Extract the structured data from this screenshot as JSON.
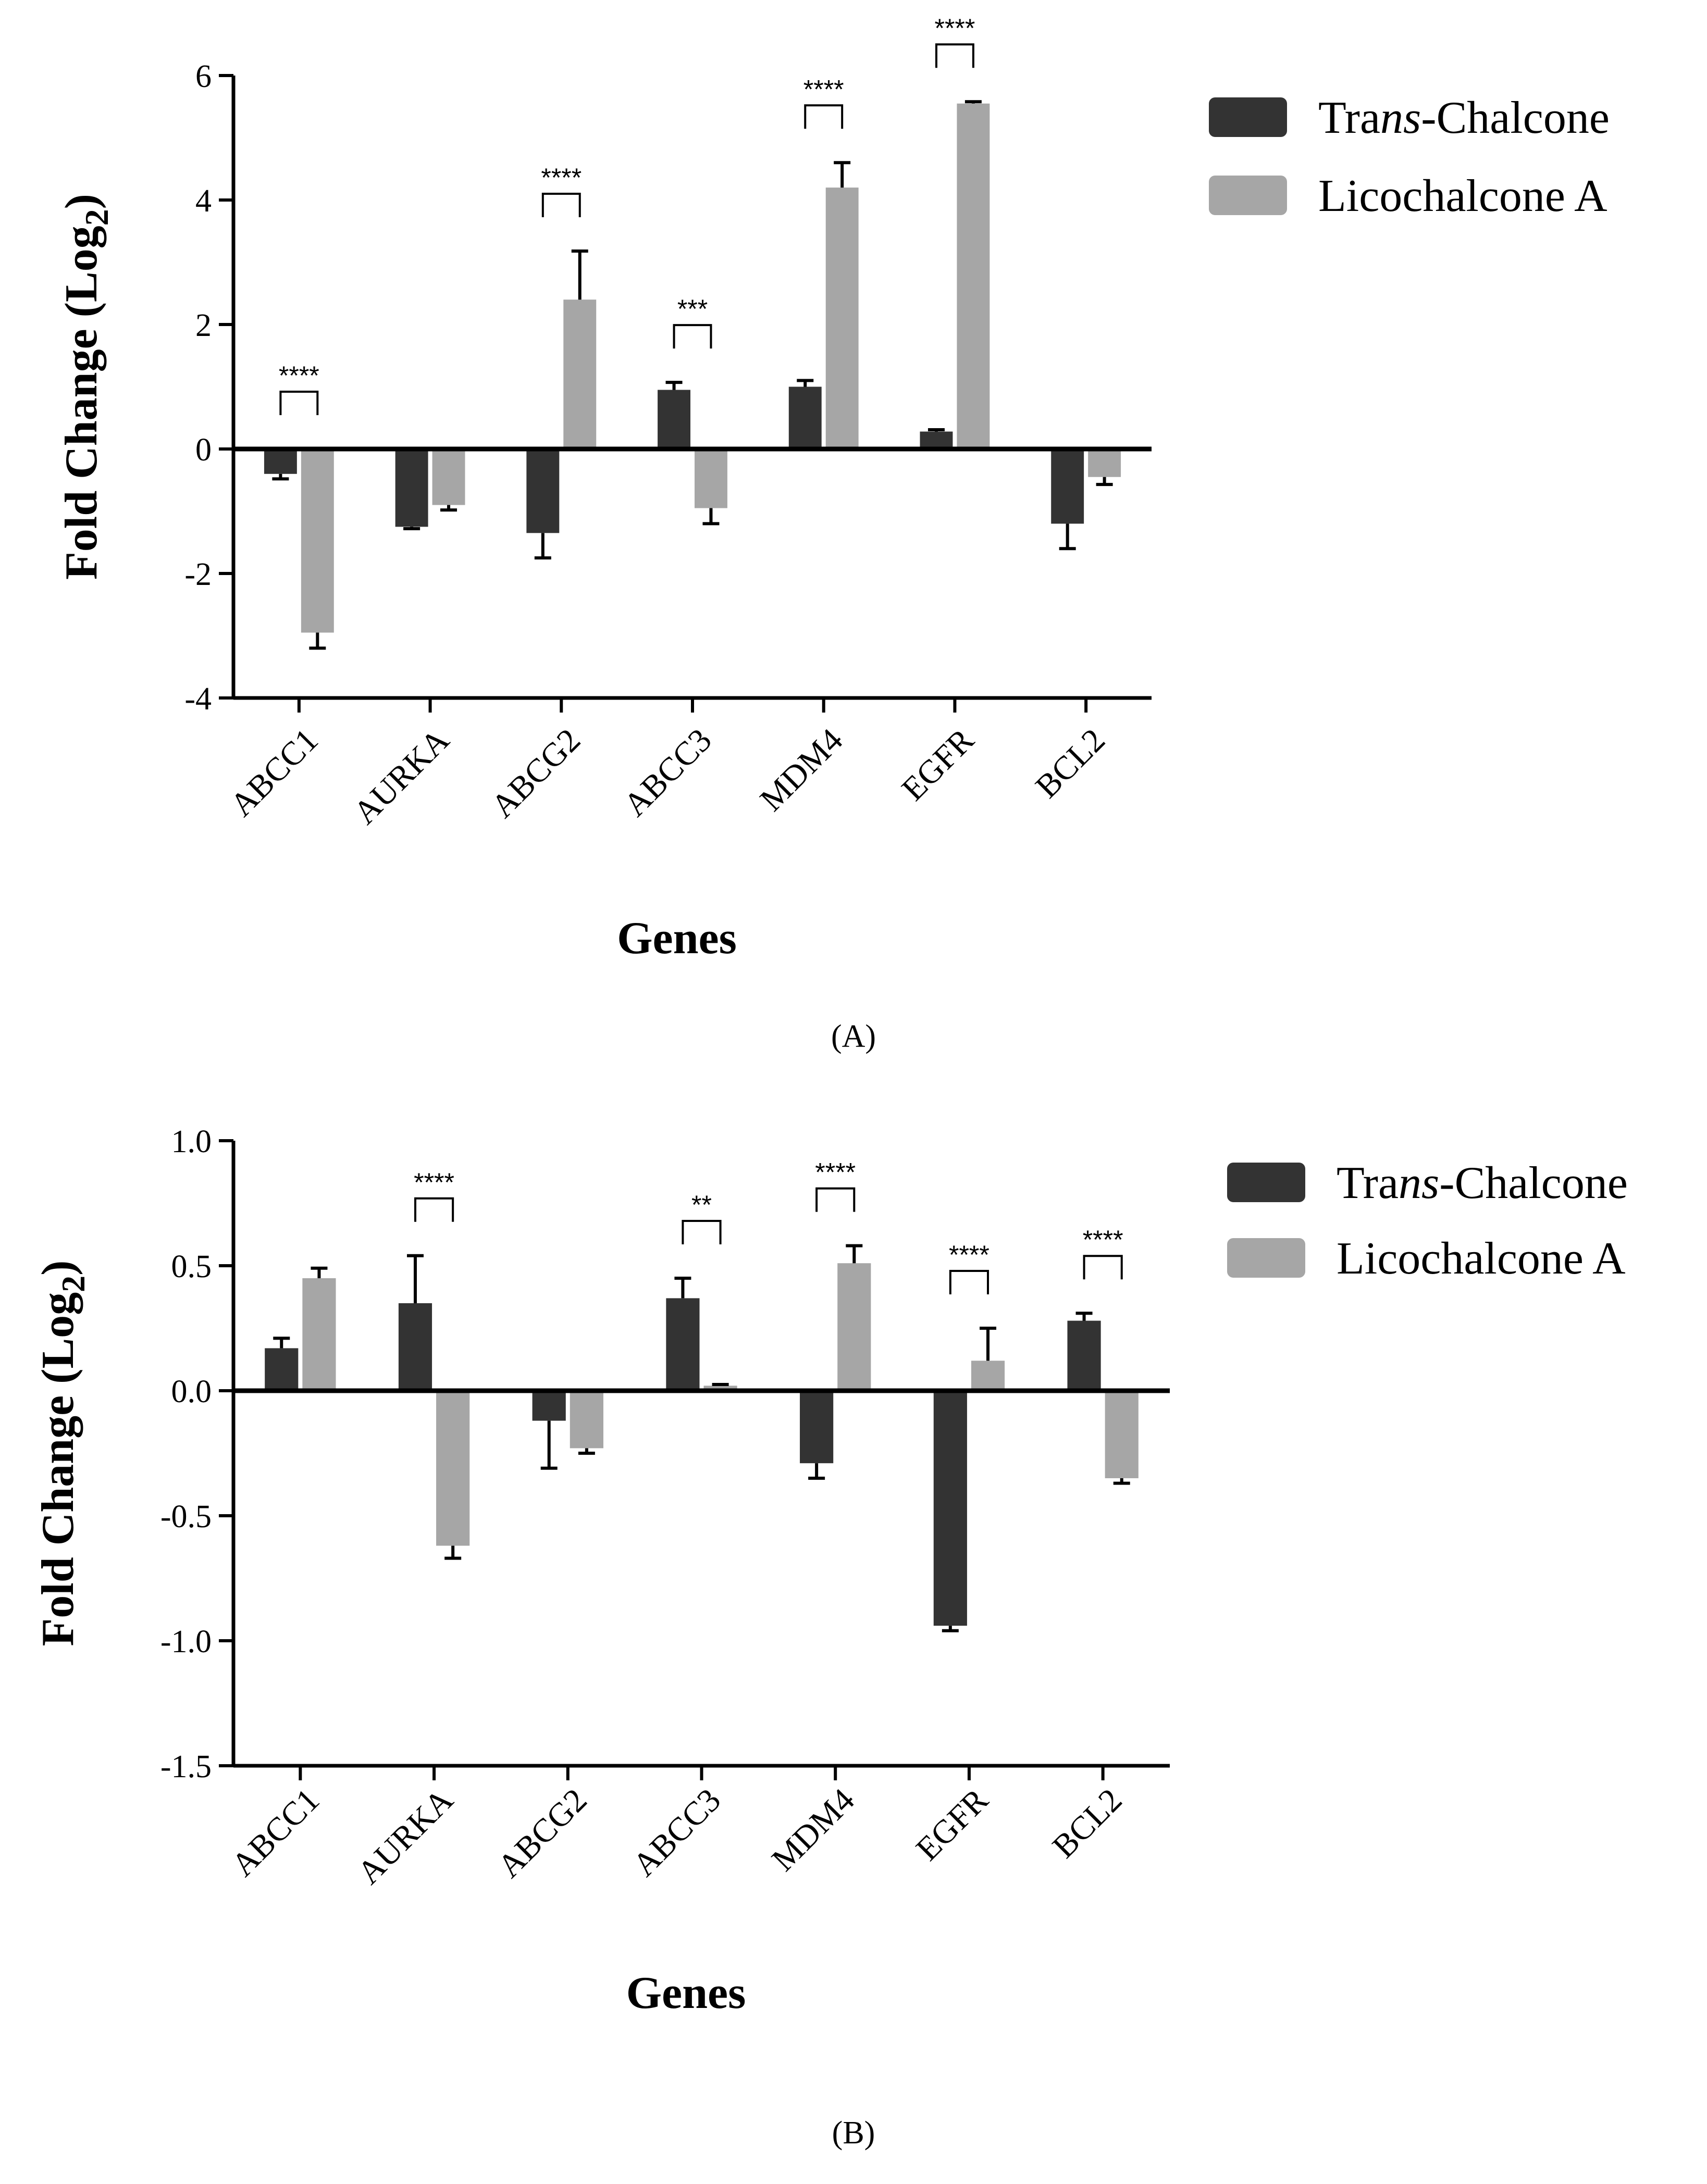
{
  "colors": {
    "trans_chalcone": "#333333",
    "licochalcone_a": "#a6a6a6",
    "axis": "#000000"
  },
  "chart_data": [
    {
      "panel": "(A)",
      "type": "bar",
      "title": "",
      "xlabel": "Genes",
      "ylabel": "Fold Change (Log",
      "ylabel_sub": "2",
      "ylabel_close": ")",
      "ylim": [
        -4,
        6
      ],
      "yticks": [
        6,
        4,
        2,
        0,
        -2,
        -4
      ],
      "ytick_labels": [
        "6",
        "4",
        "2",
        "0",
        "-2",
        "-4"
      ],
      "categories": [
        "ABCC1",
        "AURKA",
        "ABCG2",
        "ABCC3",
        "MDM4",
        "EGFR",
        "BCL2"
      ],
      "series": [
        {
          "name": "Trans-Chalcone",
          "name_prefix": "Tra",
          "name_italic": "ns",
          "name_suffix": "-Chalcone",
          "values": [
            -0.4,
            -1.25,
            -1.35,
            0.95,
            1.0,
            0.28,
            -1.2
          ],
          "errors": [
            0.08,
            0.03,
            0.4,
            0.12,
            0.1,
            0.03,
            0.4
          ]
        },
        {
          "name": "Licochalcone A",
          "name_prefix": "Licochalcone A",
          "name_italic": "",
          "name_suffix": "",
          "values": [
            -2.95,
            -0.9,
            2.4,
            -0.95,
            4.2,
            5.55,
            -0.45
          ],
          "errors": [
            0.25,
            0.08,
            0.78,
            0.25,
            0.4,
            0.03,
            0.12
          ]
        }
      ],
      "significance": [
        {
          "category": "ABCC1",
          "label": "****"
        },
        {
          "category": "ABCG2",
          "label": "****"
        },
        {
          "category": "ABCC3",
          "label": "***"
        },
        {
          "category": "MDM4",
          "label": "****"
        },
        {
          "category": "EGFR",
          "label": "****"
        }
      ],
      "legend_position": "top-right"
    },
    {
      "panel": "(B)",
      "type": "bar",
      "title": "",
      "xlabel": "Genes",
      "ylabel": "Fold Change (Log",
      "ylabel_sub": "2",
      "ylabel_close": ")",
      "ylim": [
        -1.5,
        1.0
      ],
      "yticks": [
        1.0,
        0.5,
        0.0,
        -0.5,
        -1.0,
        -1.5
      ],
      "ytick_labels": [
        "1.0",
        "0.5",
        "0.0",
        "-0.5",
        "-1.0",
        "-1.5"
      ],
      "categories": [
        "ABCC1",
        "AURKA",
        "ABCG2",
        "ABCC3",
        "MDM4",
        "EGFR",
        "BCL2"
      ],
      "series": [
        {
          "name": "Trans-Chalcone",
          "name_prefix": "Tra",
          "name_italic": "ns",
          "name_suffix": "-Chalcone",
          "values": [
            0.17,
            0.35,
            -0.12,
            0.37,
            -0.29,
            -0.94,
            0.28
          ],
          "errors": [
            0.04,
            0.19,
            0.19,
            0.08,
            0.06,
            0.02,
            0.03
          ]
        },
        {
          "name": "Licochalcone A",
          "name_prefix": "Licochalcone A",
          "name_italic": "",
          "name_suffix": "",
          "values": [
            0.45,
            -0.62,
            -0.23,
            0.02,
            0.51,
            0.12,
            -0.35
          ],
          "errors": [
            0.04,
            0.05,
            0.02,
            0.005,
            0.07,
            0.13,
            0.02
          ]
        }
      ],
      "significance": [
        {
          "category": "AURKA",
          "label": "****"
        },
        {
          "category": "ABCC3",
          "label": "**"
        },
        {
          "category": "MDM4",
          "label": "****"
        },
        {
          "category": "EGFR",
          "label": "****"
        },
        {
          "category": "BCL2",
          "label": "****"
        }
      ],
      "legend_position": "top-right"
    }
  ]
}
